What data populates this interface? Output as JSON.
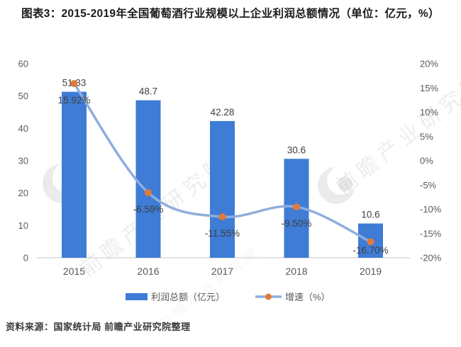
{
  "title": "图表3：2015-2019年全国葡萄酒行业规模以上企业利润总额情况（单位：亿元，%）",
  "source": "资料来源：国家统计局 前瞻产业研究院整理",
  "watermark": {
    "text": "前瞻产业研究院"
  },
  "colors": {
    "bar_blue": "#3E7CD6",
    "line_blue": "#8FAEDD",
    "marker_orange": "#E0793A",
    "axis_text": "#595959",
    "data_label": "#3F3F3F",
    "axis_line": "#D9D9D9",
    "watermark_gray": "#8A8A8A"
  },
  "chart_data": {
    "type": "bar+line",
    "categories": [
      "2015",
      "2016",
      "2017",
      "2018",
      "2019"
    ],
    "series": [
      {
        "name": "利润总额（亿元）",
        "type": "bar",
        "axis": "left",
        "values": [
          51.33,
          48.7,
          42.28,
          30.6,
          10.6
        ],
        "labels": [
          "51.33",
          "48.7",
          "42.28",
          "30.6",
          "10.6"
        ]
      },
      {
        "name": "增速（%）",
        "type": "line",
        "axis": "right",
        "values": [
          15.92,
          -6.59,
          -11.55,
          -9.5,
          -16.7
        ],
        "labels": [
          "15.92%",
          "-6.59%",
          "-11.55%",
          "-9.50%",
          "-16.70%"
        ]
      }
    ],
    "left_axis": {
      "min": 0,
      "max": 60,
      "step": 10,
      "ticks": [
        "0",
        "10",
        "20",
        "30",
        "40",
        "50",
        "60"
      ]
    },
    "right_axis": {
      "min": -20,
      "max": 20,
      "step": 5,
      "ticks": [
        "20%",
        "15%",
        "10%",
        "5%",
        "0%",
        "-5%",
        "-10%",
        "-15%",
        "-20%"
      ]
    },
    "legend": [
      {
        "label": "利润总额（亿元）",
        "swatch": "bar"
      },
      {
        "label": "增速（%）",
        "swatch": "line"
      }
    ],
    "grid": false,
    "legend_position": "bottom"
  }
}
